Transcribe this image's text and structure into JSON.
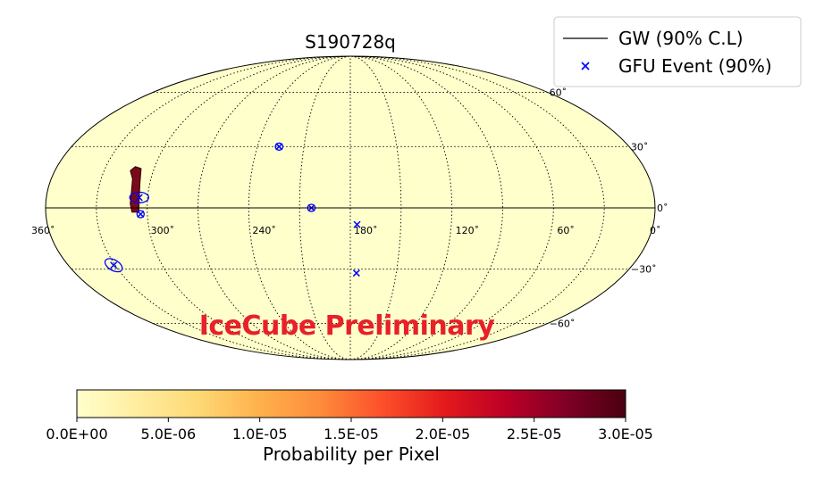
{
  "chart_data": {
    "type": "scatter",
    "projection": "mollweide",
    "title": "S190728q",
    "watermark": "IceCube Preliminary",
    "lon_ticks": [
      "360˚",
      "300˚",
      "240˚",
      "180˚",
      "120˚",
      "60˚",
      "0˚"
    ],
    "lat_ticks": [
      "60˚",
      "30˚",
      "0˚",
      "−30˚",
      "−60˚"
    ],
    "lon_tick_values": [
      360,
      300,
      240,
      180,
      120,
      60,
      0
    ],
    "lat_tick_values": [
      60,
      30,
      0,
      -30,
      -60
    ],
    "grid": true,
    "legend": {
      "position": "top-right",
      "entries": [
        {
          "label": "GW (90% C.L)",
          "marker": "line",
          "color": "#000000"
        },
        {
          "label": "GFU Event (90%)",
          "marker": "x",
          "color": "#0000ff"
        }
      ]
    },
    "gw_region": {
      "color": "#7a0a1a",
      "points": [
        [
          314,
          18
        ],
        [
          311,
          14
        ],
        [
          310,
          8
        ],
        [
          310,
          2
        ],
        [
          309,
          -2
        ],
        [
          305,
          -2
        ],
        [
          305,
          4
        ],
        [
          306,
          12
        ],
        [
          308,
          19
        ],
        [
          312,
          20
        ]
      ]
    },
    "gfu_events": [
      {
        "ra": 305,
        "dec": 5,
        "error_deg": 3.5
      },
      {
        "ra": 304,
        "dec": -3,
        "error_deg": 1.0
      },
      {
        "ra": 226,
        "dec": 30,
        "error_deg": 1.4
      },
      {
        "ra": 203,
        "dec": 0,
        "error_deg": 1.4
      },
      {
        "ra": 176,
        "dec": -8,
        "error_deg": 0
      },
      {
        "ra": 176,
        "dec": -32,
        "error_deg": 0
      },
      {
        "ra": 331,
        "dec": -28,
        "error_deg": 3.5
      }
    ],
    "colorbar": {
      "label": "Probability per Pixel",
      "min": 0,
      "max": 3e-05,
      "ticks": [
        "0.0E+00",
        "5.0E-06",
        "1.0E-05",
        "1.5E-05",
        "2.0E-05",
        "2.5E-05",
        "3.0E-05"
      ],
      "colormap": [
        "#ffffcc",
        "#ffeda0",
        "#fed976",
        "#feb24c",
        "#fd8d3c",
        "#fc4e2a",
        "#e31a1c",
        "#bd0026",
        "#800026",
        "#4a0010"
      ]
    },
    "background_color": "#ffffcc"
  }
}
